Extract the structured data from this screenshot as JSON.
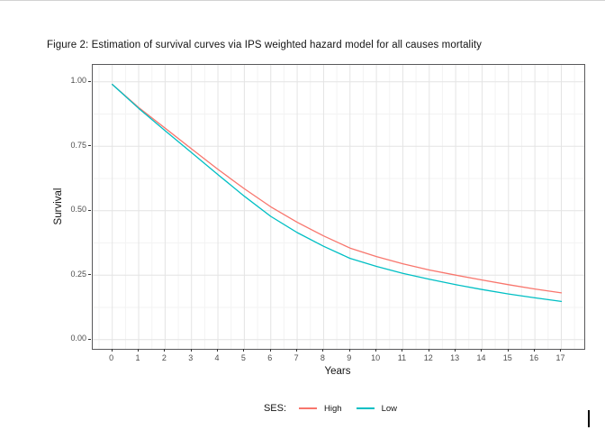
{
  "figure_caption": "Figure 2: Estimation of survival curves via IPS weighted hazard model for all causes mortality",
  "chart_data": {
    "type": "line",
    "title": "",
    "xlabel": "Years",
    "ylabel": "Survival",
    "legend_title": "SES:",
    "legend_position": "bottom",
    "grid": "major-and-minor",
    "xlim": [
      0,
      17
    ],
    "ylim": [
      0.0,
      1.0
    ],
    "x": [
      0,
      1,
      2,
      3,
      4,
      5,
      6,
      7,
      8,
      9,
      10,
      11,
      12,
      13,
      14,
      15,
      16,
      17
    ],
    "x_ticks": [
      "0",
      "1",
      "2",
      "3",
      "4",
      "5",
      "6",
      "7",
      "8",
      "9",
      "10",
      "11",
      "12",
      "13",
      "14",
      "15",
      "16",
      "17"
    ],
    "y_tick_values": [
      0.0,
      0.25,
      0.5,
      0.75,
      1.0
    ],
    "y_tick_labels": [
      "0.00",
      "0.25",
      "0.50",
      "0.75",
      "1.00"
    ],
    "series": [
      {
        "name": "High",
        "color": "#F8766D",
        "values": [
          0.99,
          0.9,
          0.82,
          0.74,
          0.66,
          0.585,
          0.515,
          0.455,
          0.402,
          0.355,
          0.322,
          0.294,
          0.27,
          0.25,
          0.231,
          0.213,
          0.196,
          0.181
        ]
      },
      {
        "name": "Low",
        "color": "#00BFC4",
        "values": [
          0.99,
          0.897,
          0.81,
          0.725,
          0.64,
          0.556,
          0.478,
          0.415,
          0.362,
          0.315,
          0.284,
          0.257,
          0.234,
          0.213,
          0.194,
          0.177,
          0.162,
          0.148
        ]
      }
    ]
  },
  "colors": {
    "series_high": "#F8766D",
    "series_low": "#00BFC4",
    "grid_major": "#e4e4e4",
    "grid_minor": "#f3f3f3",
    "panel_border": "#59595b",
    "axis_tick": "#333333",
    "tick_label": "#4d4d4d",
    "text": "#141414"
  }
}
